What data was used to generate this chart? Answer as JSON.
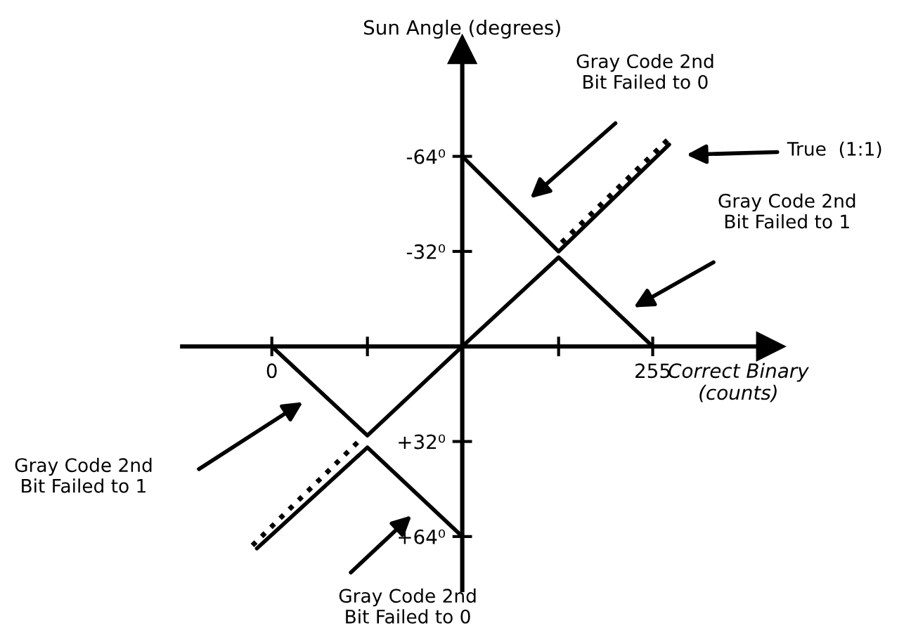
{
  "chart_data": {
    "type": "line",
    "xlabel": "Correct Binary\n(counts)",
    "ylabel": "Sun Angle (degrees)",
    "xlim": [
      -60,
      334
    ],
    "ylim": [
      82,
      -100
    ],
    "xticks": [
      {
        "value": 0,
        "label": "0"
      },
      {
        "value": 64,
        "label": null
      },
      {
        "value": 192,
        "label": null
      },
      {
        "value": 255,
        "label": "255"
      }
    ],
    "yticks": [
      {
        "value": -64,
        "label": "-64⁰"
      },
      {
        "value": -32,
        "label": "-32⁰"
      },
      {
        "value": 32,
        "label": "+32⁰"
      },
      {
        "value": 64,
        "label": "+64⁰"
      }
    ],
    "grid": false,
    "legend": false,
    "series": [
      {
        "color": "#000000",
        "line_style": "solid",
        "x": [
          127.5,
          192,
          266
        ],
        "values": [
          -64,
          -32,
          -68
        ]
      },
      {
        "color": "#000000",
        "line_style": "solid",
        "x": [
          0,
          64,
          127.5,
          192,
          255
        ],
        "values": [
          0,
          30,
          0,
          -30,
          0
        ]
      },
      {
        "color": "#000000",
        "line_style": "dotted",
        "x": [
          194,
          268
        ],
        "values": [
          -35,
          -71
        ]
      },
      {
        "color": "#000000",
        "line_style": "solid",
        "x": [
          -10,
          64,
          127.5
        ],
        "values": [
          68,
          34,
          64
        ]
      },
      {
        "color": "#000000",
        "line_style": "dotted",
        "x": [
          -13,
          60
        ],
        "values": [
          67,
          31
        ]
      }
    ],
    "annotations": [
      "Gray Code 2nd\nBit Failed to 0",
      "True  (1:1)",
      "Gray Code 2nd\nBit Failed to 1",
      "Gray Code 2nd\nBit Failed to 1",
      "Gray Code 2nd\nBit Failed to 0"
    ]
  }
}
